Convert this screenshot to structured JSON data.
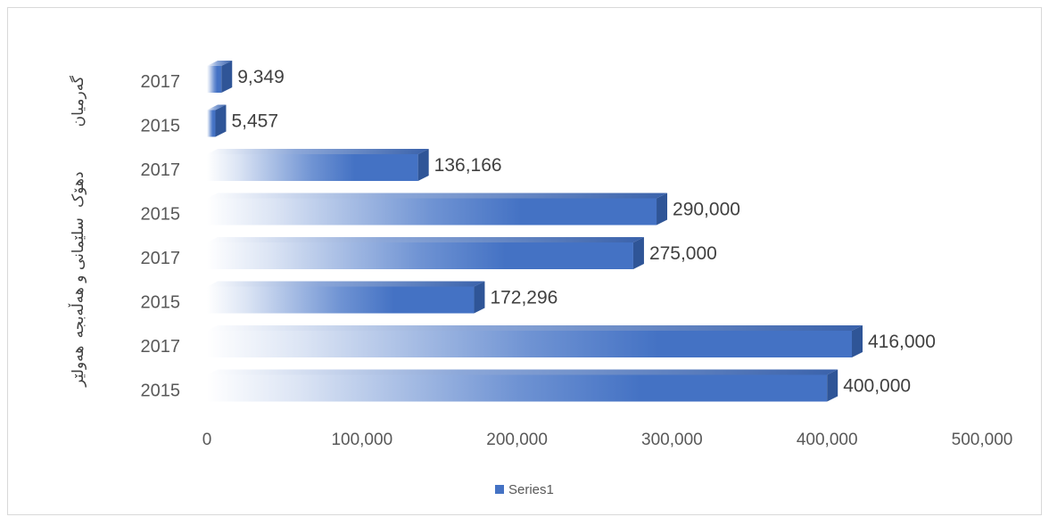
{
  "chart_data": {
    "type": "bar",
    "orientation": "horizontal",
    "title": "",
    "xlabel": "",
    "ylabel": "",
    "xlim": [
      0,
      500000
    ],
    "x_ticks": [
      "0",
      "100,000",
      "200,000",
      "300,000",
      "400,000",
      "500,000"
    ],
    "grid": false,
    "legend_position": "bottom",
    "series_color": "#4472c4",
    "groups": [
      {
        "label": "گەرمیان",
        "bars": [
          {
            "year": "2017",
            "value": 9349,
            "value_label": "9,349"
          },
          {
            "year": "2015",
            "value": 5457,
            "value_label": "5,457"
          }
        ]
      },
      {
        "label": "دهۆک",
        "bars": [
          {
            "year": "2017",
            "value": 136166,
            "value_label": "136,166"
          },
          {
            "year": "2015",
            "value": 290000,
            "value_label": "290,000"
          }
        ]
      },
      {
        "label": "سلێمانی و هەڵەبجە",
        "bars": [
          {
            "year": "2017",
            "value": 275000,
            "value_label": "275,000"
          },
          {
            "year": "2015",
            "value": 172296,
            "value_label": "172,296"
          }
        ]
      },
      {
        "label": "هەولێر",
        "bars": [
          {
            "year": "2017",
            "value": 416000,
            "value_label": "416,000"
          },
          {
            "year": "2015",
            "value": 400000,
            "value_label": "400,000"
          }
        ]
      }
    ],
    "series": [
      {
        "name": "Series1"
      }
    ]
  }
}
